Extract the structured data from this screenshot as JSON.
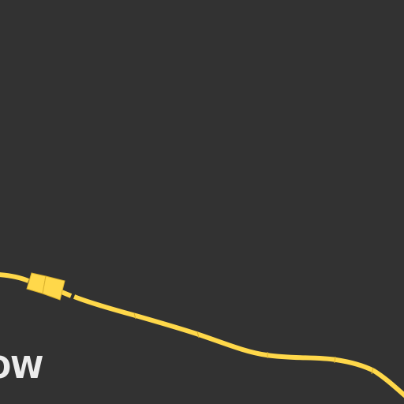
{
  "map": {
    "background_color": "#323232",
    "road_color": "#ffd84a",
    "road_edge_color": "#d9b12e",
    "label_color": "#ececec",
    "place_label": "OW"
  }
}
